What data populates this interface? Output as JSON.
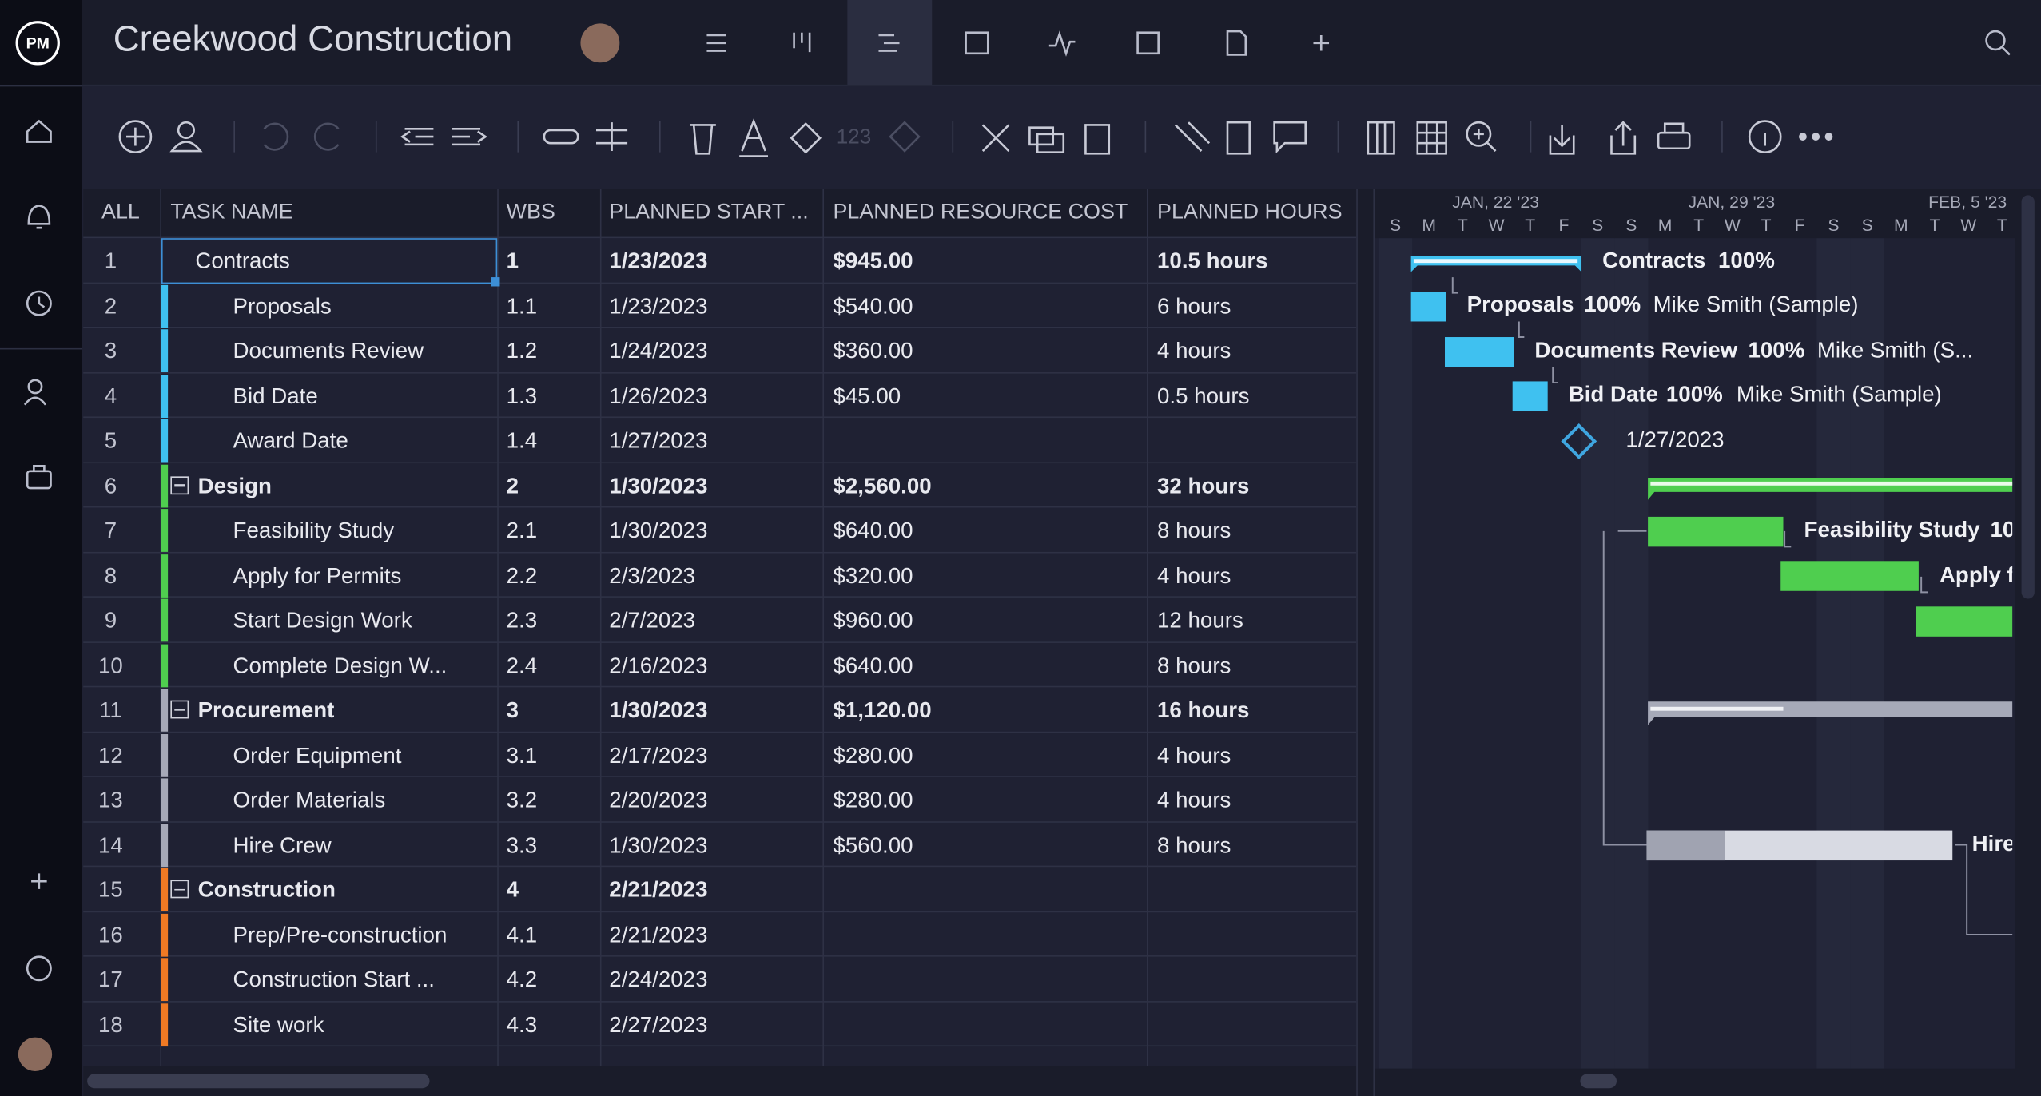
{
  "app": {
    "title": "Creekwood Construction"
  },
  "toolbar": {
    "number_format": "123"
  },
  "table": {
    "headers": [
      "ALL",
      "TASK NAME",
      "WBS",
      "PLANNED START ...",
      "PLANNED RESOURCE COST",
      "PLANNED HOURS"
    ],
    "rows": [
      {
        "num": 1,
        "name": "Contracts",
        "wbs": "1",
        "start": "1/23/2023",
        "cost": "$945.00",
        "hours": "10.5 hours",
        "summary": true,
        "collapsible": false,
        "selected": true,
        "color": "#3fc1f0"
      },
      {
        "num": 2,
        "name": "Proposals",
        "wbs": "1.1",
        "start": "1/23/2023",
        "cost": "$540.00",
        "hours": "6 hours",
        "summary": false,
        "collapsible": false,
        "selected": false,
        "color": "#3fc1f0"
      },
      {
        "num": 3,
        "name": "Documents Review",
        "wbs": "1.2",
        "start": "1/24/2023",
        "cost": "$360.00",
        "hours": "4 hours",
        "summary": false,
        "collapsible": false,
        "selected": false,
        "color": "#3fc1f0"
      },
      {
        "num": 4,
        "name": "Bid Date",
        "wbs": "1.3",
        "start": "1/26/2023",
        "cost": "$45.00",
        "hours": "0.5 hours",
        "summary": false,
        "collapsible": false,
        "selected": false,
        "color": "#3fc1f0"
      },
      {
        "num": 5,
        "name": "Award Date",
        "wbs": "1.4",
        "start": "1/27/2023",
        "cost": null,
        "hours": null,
        "summary": false,
        "collapsible": false,
        "selected": false,
        "color": "#3fc1f0"
      },
      {
        "num": 6,
        "name": "Design",
        "wbs": "2",
        "start": "1/30/2023",
        "cost": "$2,560.00",
        "hours": "32 hours",
        "summary": true,
        "collapsible": true,
        "selected": false,
        "color": "#4fce4f"
      },
      {
        "num": 7,
        "name": "Feasibility Study",
        "wbs": "2.1",
        "start": "1/30/2023",
        "cost": "$640.00",
        "hours": "8 hours",
        "summary": false,
        "collapsible": false,
        "selected": false,
        "color": "#4fce4f"
      },
      {
        "num": 8,
        "name": "Apply for Permits",
        "wbs": "2.2",
        "start": "2/3/2023",
        "cost": "$320.00",
        "hours": "4 hours",
        "summary": false,
        "collapsible": false,
        "selected": false,
        "color": "#4fce4f"
      },
      {
        "num": 9,
        "name": "Start Design Work",
        "wbs": "2.3",
        "start": "2/7/2023",
        "cost": "$960.00",
        "hours": "12 hours",
        "summary": false,
        "collapsible": false,
        "selected": false,
        "color": "#4fce4f"
      },
      {
        "num": 10,
        "name": "Complete Design W...",
        "wbs": "2.4",
        "start": "2/16/2023",
        "cost": "$640.00",
        "hours": "8 hours",
        "summary": false,
        "collapsible": false,
        "selected": false,
        "color": "#4fce4f"
      },
      {
        "num": 11,
        "name": "Procurement",
        "wbs": "3",
        "start": "1/30/2023",
        "cost": "$1,120.00",
        "hours": "16 hours",
        "summary": true,
        "collapsible": true,
        "selected": false,
        "color": "#a6a9b8"
      },
      {
        "num": 12,
        "name": "Order Equipment",
        "wbs": "3.1",
        "start": "2/17/2023",
        "cost": "$280.00",
        "hours": "4 hours",
        "summary": false,
        "collapsible": false,
        "selected": false,
        "color": "#a6a9b8"
      },
      {
        "num": 13,
        "name": "Order Materials",
        "wbs": "3.2",
        "start": "2/20/2023",
        "cost": "$280.00",
        "hours": "4 hours",
        "summary": false,
        "collapsible": false,
        "selected": false,
        "color": "#a6a9b8"
      },
      {
        "num": 14,
        "name": "Hire Crew",
        "wbs": "3.3",
        "start": "1/30/2023",
        "cost": "$560.00",
        "hours": "8 hours",
        "summary": false,
        "collapsible": false,
        "selected": false,
        "color": "#a6a9b8"
      },
      {
        "num": 15,
        "name": "Construction",
        "wbs": "4",
        "start": "2/21/2023",
        "cost": null,
        "hours": null,
        "summary": true,
        "collapsible": true,
        "selected": false,
        "color": "#f07a24"
      },
      {
        "num": 16,
        "name": "Prep/Pre-construction",
        "wbs": "4.1",
        "start": "2/21/2023",
        "cost": null,
        "hours": null,
        "summary": false,
        "collapsible": false,
        "selected": false,
        "color": "#f07a24"
      },
      {
        "num": 17,
        "name": "Construction Start ...",
        "wbs": "4.2",
        "start": "2/24/2023",
        "cost": null,
        "hours": null,
        "summary": false,
        "collapsible": false,
        "selected": false,
        "color": "#f07a24"
      },
      {
        "num": 18,
        "name": "Site work",
        "wbs": "4.3",
        "start": "2/27/2023",
        "cost": null,
        "hours": null,
        "summary": false,
        "collapsible": false,
        "selected": false,
        "color": "#f07a24"
      }
    ]
  },
  "gantt": {
    "weeks": [
      "JAN, 22 '23",
      "JAN, 29 '23",
      "FEB, 5 '23"
    ],
    "days": [
      "S",
      "M",
      "T",
      "W",
      "T",
      "F",
      "S",
      "S",
      "M",
      "T",
      "W",
      "T",
      "F",
      "S",
      "S",
      "M",
      "T",
      "W",
      "T"
    ],
    "bar_labels": [
      {
        "task": "Contracts",
        "percent": "100%"
      },
      {
        "task": "Proposals",
        "percent": "100%",
        "assignee": "Mike Smith (Sample)"
      },
      {
        "task": "Documents Review",
        "percent": "100%",
        "assignee": "Mike Smith (S..."
      },
      {
        "task": "Bid Date",
        "percent": "100%",
        "assignee": "Mike Smith (Sample)"
      },
      {
        "task": "1/27/2023"
      },
      {
        "task": "Feasibility Study",
        "percent": "10"
      },
      {
        "task": "Apply f"
      },
      {
        "task": "Hire"
      }
    ]
  }
}
